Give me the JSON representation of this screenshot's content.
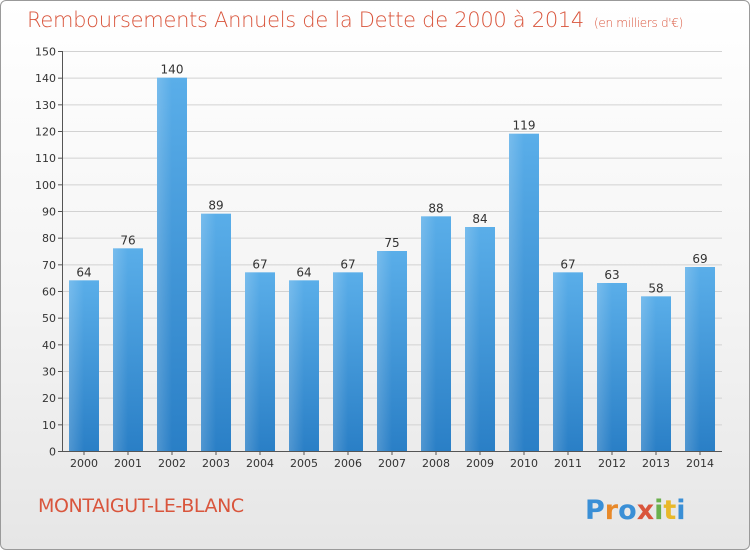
{
  "title": "Remboursements Annuels de la Dette de 2000 à 2014",
  "unit": "(en milliers d'€)",
  "town": "MONTAIGUT-LE-BLANC",
  "logo_text": "Proxiti",
  "colors": {
    "title": "#d9553c",
    "bar_top": "#5aaee9",
    "bar_bottom": "#2a7fc6",
    "grid": "#d2d2d2"
  },
  "chart_data": {
    "type": "bar",
    "title": "Remboursements Annuels de la Dette de 2000 à 2014",
    "xlabel": "",
    "ylabel": "",
    "categories": [
      "2000",
      "2001",
      "2002",
      "2003",
      "2004",
      "2005",
      "2006",
      "2007",
      "2008",
      "2009",
      "2010",
      "2011",
      "2012",
      "2013",
      "2014"
    ],
    "values": [
      64,
      76,
      140,
      89,
      67,
      64,
      67,
      75,
      88,
      84,
      119,
      67,
      63,
      58,
      69
    ],
    "ylim": [
      0,
      150
    ],
    "yticks": [
      0,
      10,
      20,
      30,
      40,
      50,
      60,
      70,
      80,
      90,
      100,
      110,
      120,
      130,
      140,
      150
    ],
    "grid": true,
    "data_labels": true
  }
}
